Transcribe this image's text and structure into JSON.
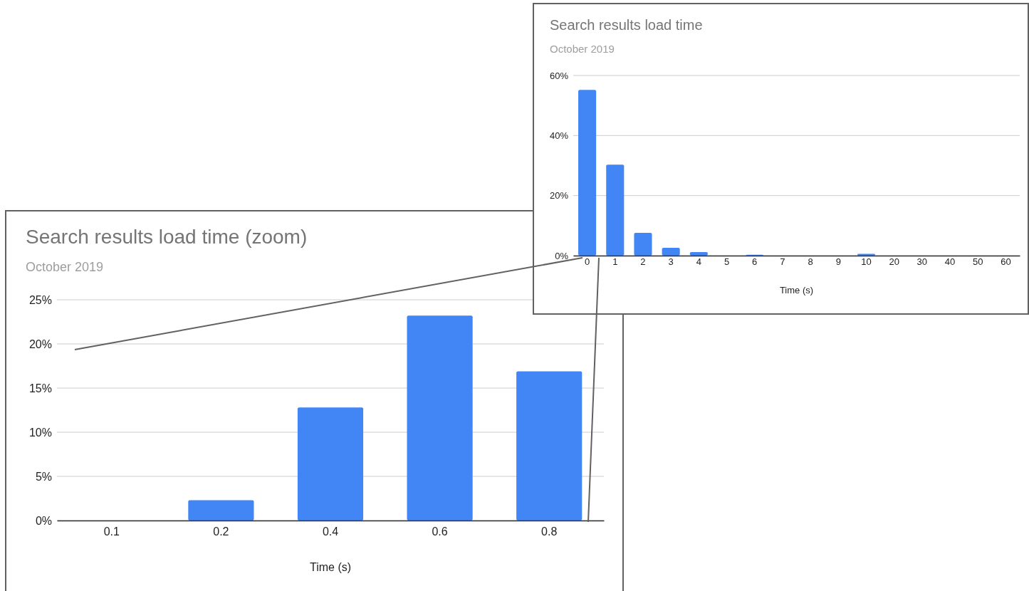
{
  "chart_data": [
    {
      "type": "bar",
      "title": "Search results load time",
      "subtitle": "October 2019",
      "xlabel": "Time (s)",
      "categories": [
        "0",
        "1",
        "2",
        "3",
        "4",
        "5",
        "6",
        "7",
        "8",
        "9",
        "10",
        "20",
        "30",
        "40",
        "50",
        "60"
      ],
      "values": [
        55.2,
        30.3,
        7.6,
        2.6,
        1.2,
        0,
        0.3,
        0,
        0,
        0,
        0.6,
        0,
        0,
        0,
        0,
        0
      ],
      "color": "#4285f4",
      "ylim": [
        0,
        60
      ],
      "yticks": [
        {
          "value": 0,
          "label": "0%"
        },
        {
          "value": 20,
          "label": "20%"
        },
        {
          "value": 40,
          "label": "40%"
        },
        {
          "value": 60,
          "label": "60%"
        }
      ],
      "grid": "y"
    },
    {
      "type": "bar",
      "title": "Search results load time (zoom)",
      "subtitle": "October 2019",
      "xlabel": "Time (s)",
      "categories": [
        "0.1",
        "0.2",
        "0.4",
        "0.6",
        "0.8"
      ],
      "values": [
        0,
        2.3,
        12.8,
        23.2,
        16.9
      ],
      "color": "#4285f4",
      "ylim": [
        0,
        25
      ],
      "yticks": [
        {
          "value": 0,
          "label": "0%"
        },
        {
          "value": 5,
          "label": "5%"
        },
        {
          "value": 10,
          "label": "10%"
        },
        {
          "value": 15,
          "label": "15%"
        },
        {
          "value": 20,
          "label": "20%"
        },
        {
          "value": 25,
          "label": "25%"
        }
      ],
      "grid": "y"
    }
  ]
}
